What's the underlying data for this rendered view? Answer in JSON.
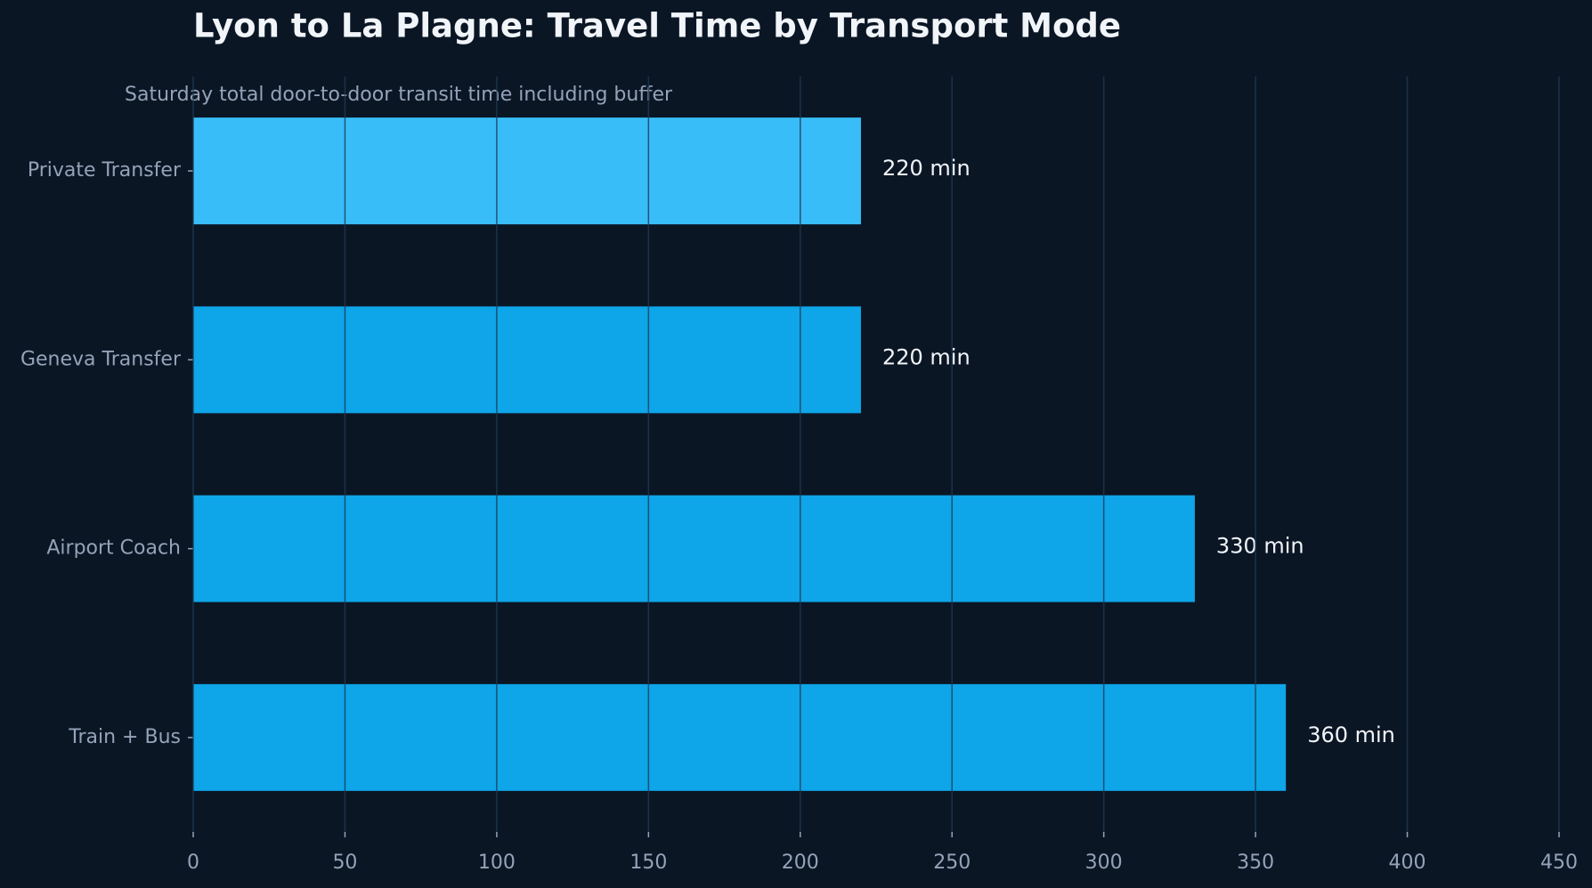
{
  "chart_data": {
    "type": "barh",
    "title": "Lyon to La Plagne: Travel Time by Transport Mode",
    "subtitle": "Saturday total door-to-door transit time including buffer",
    "categories": [
      "Private Transfer",
      "Geneva Transfer",
      "Airport Coach",
      "Train + Bus"
    ],
    "values": [
      220,
      220,
      330,
      360
    ],
    "value_labels": [
      "220 min",
      "220 min",
      "330 min",
      "360 min"
    ],
    "colors": [
      "#38bdf8",
      "#0ea5e9",
      "#0ea5e9",
      "#0ea5e9"
    ],
    "xlim": [
      0,
      450
    ],
    "xticks": [
      0,
      50,
      100,
      150,
      200,
      250,
      300,
      350,
      400,
      450
    ],
    "grid": true
  }
}
